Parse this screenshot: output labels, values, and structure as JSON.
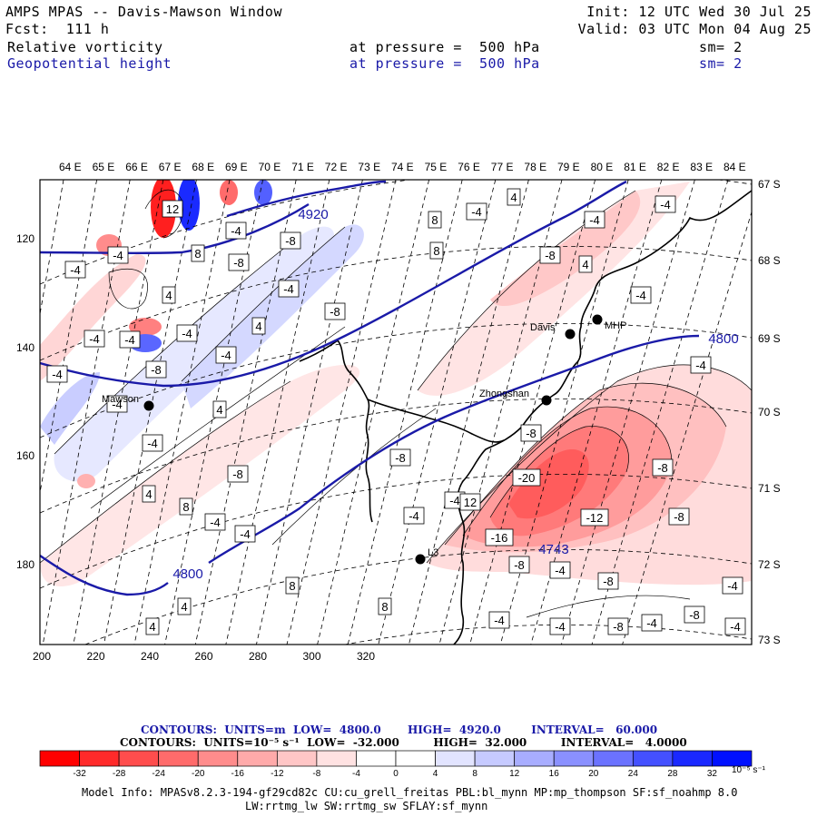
{
  "header": {
    "title": "AMPS MPAS -- Davis-Mawson Window",
    "forecast": "Fcst:  111 h",
    "init": "Init: 12 UTC Wed 30 Jul 25",
    "valid": "Valid: 03 UTC Mon 04 Aug 25",
    "field1": {
      "name": "Relative vorticity",
      "level": "at pressure =  500 hPa",
      "sm": "sm= 2"
    },
    "field2": {
      "name": "Geopotential height",
      "level": "at pressure =  500 hPa",
      "sm": "sm= 2"
    }
  },
  "map": {
    "lon_labels": [
      "64 E",
      "65 E",
      "66 E",
      "67 E",
      "68 E",
      "69 E",
      "70 E",
      "71 E",
      "72 E",
      "73 E",
      "74 E",
      "75 E",
      "76 E",
      "77 E",
      "78 E",
      "79 E",
      "80 E",
      "81 E",
      "82 E",
      "83 E",
      "84 E"
    ],
    "lat_labels": [
      "67 S",
      "68 S",
      "69 S",
      "70 S",
      "71 S",
      "72 S",
      "73 S"
    ],
    "x_ticks": [
      "200",
      "220",
      "240",
      "260",
      "280",
      "300",
      "320"
    ],
    "y_ticks": [
      "120",
      "140",
      "160",
      "180"
    ],
    "stations": [
      {
        "name": "Davis"
      },
      {
        "name": "MHP"
      },
      {
        "name": "Zhongshan"
      },
      {
        "name": "Mawson"
      },
      {
        "name": "L3"
      }
    ],
    "height_labels": [
      "4920",
      "4800",
      "4800",
      "4743"
    ],
    "vort_labels": [
      "-4",
      "-4",
      "12",
      "-4",
      "-8",
      "-8",
      "8",
      "4",
      "8",
      "8",
      "-4",
      "4",
      "-4",
      "-4",
      "-8",
      "4",
      "-4",
      "-4",
      "-8",
      "4",
      "-4",
      "-4",
      "-4",
      "-4",
      "-8",
      "-4",
      "-4",
      "4",
      "-4",
      "-8",
      "4",
      "8",
      "-4",
      "-4",
      "-8",
      "-20",
      "-12",
      "-8",
      "-16",
      "-8",
      "-4",
      "-4",
      "-4",
      "-8",
      "-8",
      "-8",
      "-4",
      "-8",
      "-4",
      "-8",
      "8",
      "8",
      "4",
      "4",
      "-4",
      "-4",
      "12",
      "-4",
      "-4"
    ]
  },
  "legend": {
    "contours_height": "CONTOURS:  UNITS=m  LOW=  4800.0       HIGH=  4920.0        INTERVAL=   60.000",
    "contours_vort": "CONTOURS:  UNITS=10⁻⁵ s⁻¹  LOW=  -32.000         HIGH=  32.000         INTERVAL=   4.0000",
    "colorbar_labels": [
      "-32",
      "-28",
      "-24",
      "-20",
      "-16",
      "-12",
      "-8",
      "-4",
      "0",
      "4",
      "8",
      "12",
      "16",
      "20",
      "24",
      "28",
      "32"
    ],
    "colorbar_unit": "10⁻⁵ s⁻¹",
    "colors": [
      "#ff0000",
      "#ff2a2a",
      "#ff4d4d",
      "#ff6b6b",
      "#ff8c8c",
      "#ffaaaa",
      "#ffc6c6",
      "#ffe2e2",
      "#ffffff",
      "#ffffff",
      "#e2e4ff",
      "#c6caff",
      "#a8adff",
      "#8a90ff",
      "#6b72ff",
      "#4450ff",
      "#1a28ff",
      "#0010ff"
    ]
  },
  "footer": {
    "model_info_1": "Model Info: MPASv8.2.3-194-gf29cd82c CU:cu_grell_freitas PBL:bl_mynn MP:mp_thompson SF:sf_noahmp 8.0",
    "model_info_2": "LW:rrtmg_lw SW:rrtmg_sw SFLAY:sf_mynn"
  }
}
